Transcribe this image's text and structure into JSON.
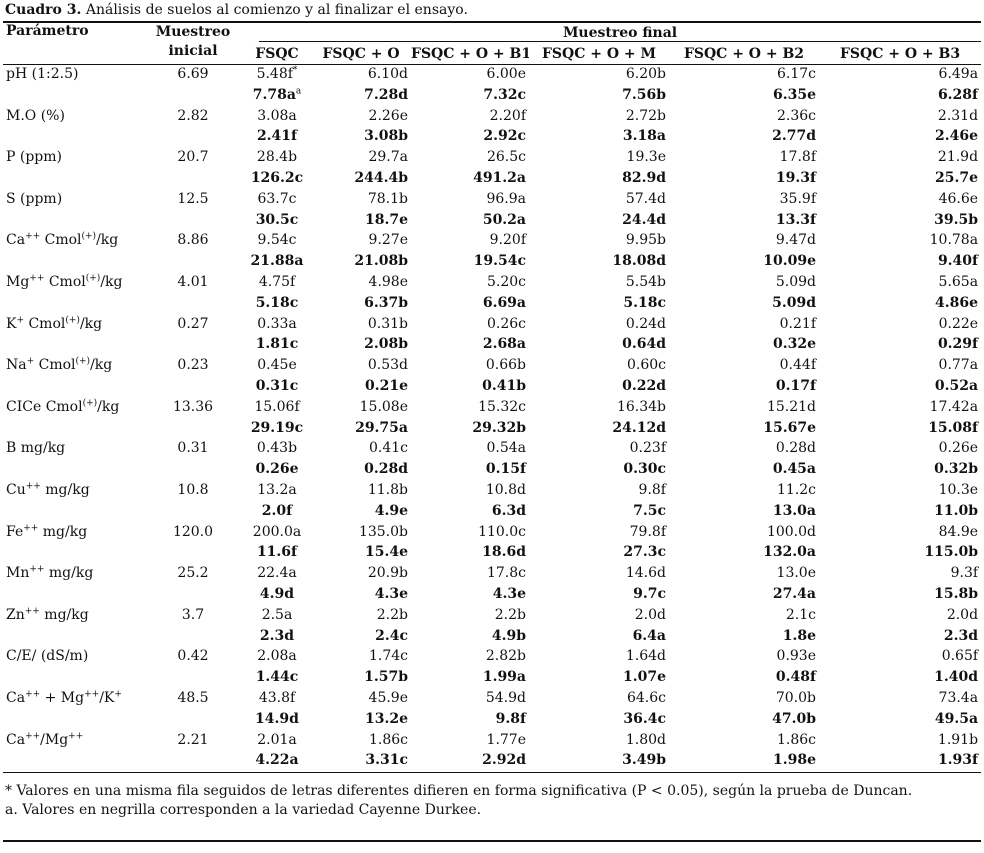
{
  "caption": {
    "label": "Cuadro 3.",
    "text": "Análisis de suelos al comienzo y al finalizar el ensayo."
  },
  "header": {
    "parametro": "Parámetro",
    "muestreo_inicial_line1": "Muestreo",
    "muestreo_inicial_line2": "inicial",
    "muestreo_final": "Muestreo final",
    "treatments": [
      "FSQC",
      "FSQC + O",
      "FSQC + O + B1",
      "FSQC + O + M",
      "FSQC + O + B2",
      "FSQC + O + B3"
    ]
  },
  "rows": [
    {
      "param": "pH (1:2.5)",
      "sup": "",
      "suffix": "",
      "inicial": "6.69",
      "top": [
        "5.48f",
        "6.10d",
        "6.00e",
        "6.20b",
        "6.17c",
        "6.49a"
      ],
      "top_sup0": "*",
      "bottom": [
        "7.78a",
        "7.28d",
        "7.32c",
        "7.56b",
        "6.35e",
        "6.28f"
      ],
      "bottom_sup0": "a"
    },
    {
      "param": "M.O (%)",
      "sup": "",
      "suffix": "",
      "inicial": "2.82",
      "top": [
        "3.08a",
        "2.26e",
        "2.20f",
        "2.72b",
        "2.36c",
        "2.31d"
      ],
      "bottom": [
        "2.41f",
        "3.08b",
        "2.92c",
        "3.18a",
        "2.77d",
        "2.46e"
      ]
    },
    {
      "param": "P (ppm)",
      "sup": "",
      "suffix": "",
      "inicial": "20.7",
      "top": [
        "28.4b",
        "29.7a",
        "26.5c",
        "19.3e",
        "17.8f",
        "21.9d"
      ],
      "bottom": [
        "126.2c",
        "244.4b",
        "491.2a",
        "82.9d",
        "19.3f",
        "25.7e"
      ]
    },
    {
      "param": "S (ppm)",
      "sup": "",
      "suffix": "",
      "inicial": "12.5",
      "top": [
        "63.7c",
        "78.1b",
        "96.9a",
        "57.4d",
        "35.9f",
        "46.6e"
      ],
      "bottom": [
        "30.5c",
        "18.7e",
        "50.2a",
        "24.4d",
        "13.3f",
        "39.5b"
      ]
    },
    {
      "param": "Ca",
      "sup": "++",
      "suffix": " Cmol",
      "sup2": "(+)",
      "suffix2": "/kg",
      "inicial": "8.86",
      "top": [
        "9.54c",
        "9.27e",
        "9.20f",
        "9.95b",
        "9.47d",
        "10.78a"
      ],
      "bottom": [
        "21.88a",
        "21.08b",
        "19.54c",
        "18.08d",
        "10.09e",
        "9.40f"
      ]
    },
    {
      "param": "Mg",
      "sup": "++",
      "suffix": " Cmol",
      "sup2": "(+)",
      "suffix2": "/kg",
      "inicial": "4.01",
      "top": [
        "4.75f",
        "4.98e",
        "5.20c",
        "5.54b",
        "5.09d",
        "5.65a"
      ],
      "bottom": [
        "5.18c",
        "6.37b",
        "6.69a",
        "5.18c",
        "5.09d",
        "4.86e"
      ]
    },
    {
      "param": "K",
      "sup": "+",
      "suffix": " Cmol",
      "sup2": "(+)",
      "suffix2": "/kg",
      "inicial": "0.27",
      "top": [
        "0.33a",
        "0.31b",
        "0.26c",
        "0.24d",
        "0.21f",
        "0.22e"
      ],
      "bottom": [
        "1.81c",
        "2.08b",
        "2.68a",
        "0.64d",
        "0.32e",
        "0.29f"
      ]
    },
    {
      "param": "Na",
      "sup": "+",
      "suffix": " Cmol",
      "sup2": "(+)",
      "suffix2": "/kg",
      "inicial": "0.23",
      "top": [
        "0.45e",
        "0.53d",
        "0.66b",
        "0.60c",
        "0.44f",
        "0.77a"
      ],
      "bottom": [
        "0.31c",
        "0.21e",
        "0.41b",
        "0.22d",
        "0.17f",
        "0.52a"
      ]
    },
    {
      "param": "CICe Cmol",
      "sup": "(+)",
      "suffix": "/kg",
      "inicial": "13.36",
      "top": [
        "15.06f",
        "15.08e",
        "15.32c",
        "16.34b",
        "15.21d",
        "17.42a"
      ],
      "bottom": [
        "29.19c",
        "29.75a",
        "29.32b",
        "24.12d",
        "15.67e",
        "15.08f"
      ]
    },
    {
      "param": "B  mg/kg",
      "sup": "",
      "suffix": "",
      "inicial": "0.31",
      "top": [
        "0.43b",
        "0.41c",
        "0.54a",
        "0.23f",
        "0.28d",
        "0.26e"
      ],
      "bottom": [
        "0.26e",
        "0.28d",
        "0.15f",
        "0.30c",
        "0.45a",
        "0.32b"
      ]
    },
    {
      "param": "Cu",
      "sup": "++",
      "suffix": " mg/kg",
      "inicial": "10.8",
      "top": [
        "13.2a",
        "11.8b",
        "10.8d",
        "9.8f",
        "11.2c",
        "10.3e"
      ],
      "bottom": [
        "2.0f",
        "4.9e",
        "6.3d",
        "7.5c",
        "13.0a",
        "11.0b"
      ]
    },
    {
      "param": "Fe",
      "sup": "++",
      "suffix": " mg/kg",
      "inicial": "120.0",
      "top": [
        "200.0a",
        "135.0b",
        "110.0c",
        "79.8f",
        "100.0d",
        "84.9e"
      ],
      "bottom": [
        "11.6f",
        "15.4e",
        "18.6d",
        "27.3c",
        "132.0a",
        "115.0b"
      ]
    },
    {
      "param": "Mn",
      "sup": "++",
      "suffix": " mg/kg",
      "inicial": "25.2",
      "top": [
        "22.4a",
        "20.9b",
        "17.8c",
        "14.6d",
        "13.0e",
        "9.3f"
      ],
      "bottom": [
        "4.9d",
        "4.3e",
        "4.3e",
        "9.7c",
        "27.4a",
        "15.8b"
      ]
    },
    {
      "param": "Zn",
      "sup": "++",
      "suffix": " mg/kg",
      "inicial": "3.7",
      "top": [
        "2.5a",
        "2.2b",
        "2.2b",
        "2.0d",
        "2.1c",
        "2.0d"
      ],
      "bottom": [
        "2.3d",
        "2.4c",
        "4.9b",
        "6.4a",
        "1.8e",
        "2.3d"
      ]
    },
    {
      "param": "C/E/ (dS/m)",
      "sup": "",
      "suffix": "",
      "inicial": "0.42",
      "top": [
        "2.08a",
        "1.74c",
        "2.82b",
        "1.64d",
        "0.93e",
        "0.65f"
      ],
      "bottom": [
        "1.44c",
        "1.57b",
        "1.99a",
        "1.07e",
        "0.48f",
        "1.40d"
      ]
    },
    {
      "param": "Ca",
      "sup": "++",
      "suffix": " + Mg",
      "sup2": "++",
      "suffix2": "/K",
      "sup3": "+",
      "inicial": "48.5",
      "top": [
        "43.8f",
        "45.9e",
        "54.9d",
        "64.6c",
        "70.0b",
        "73.4a"
      ],
      "bottom": [
        "14.9d",
        "13.2e",
        "9.8f",
        "36.4c",
        "47.0b",
        "49.5a"
      ]
    },
    {
      "param": "Ca",
      "sup": "++",
      "suffix": "/Mg",
      "sup2": "++",
      "suffix2": "",
      "inicial": "2.21",
      "top": [
        "2.01a",
        "1.86c",
        "1.77e",
        "1.80d",
        "1.86c",
        "1.91b"
      ],
      "bottom": [
        "4.22a",
        "3.31c",
        "2.92d",
        "3.49b",
        "1.98e",
        "1.93f"
      ]
    }
  ],
  "footnotes": [
    "* Valores en una misma fila seguidos de letras diferentes difieren en forma significativa (P < 0.05), según la prueba de Duncan.",
    "a.  Valores en negrilla corresponden a la variedad Cayenne Durkee."
  ]
}
